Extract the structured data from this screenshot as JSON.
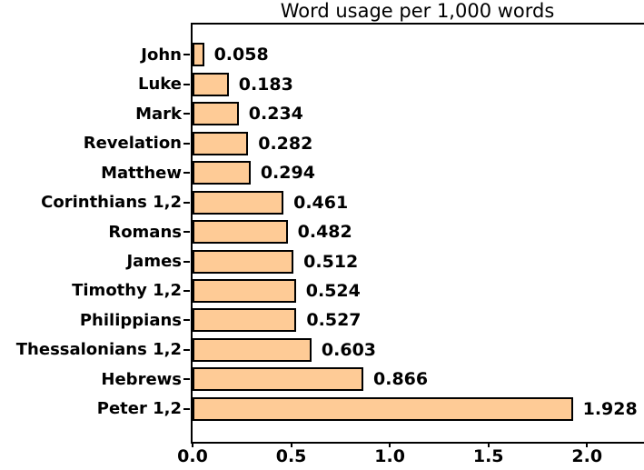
{
  "chart_data": {
    "type": "bar",
    "orientation": "horizontal",
    "title": "Word usage per 1,000 words",
    "xlabel": "",
    "ylabel": "",
    "grid": false,
    "legend": null,
    "categories": [
      "John",
      "Luke",
      "Mark",
      "Revelation",
      "Matthew",
      "Corinthians 1,2",
      "Romans",
      "James",
      "Timothy 1,2",
      "Philippians",
      "Thessalonians 1,2",
      "Hebrews",
      "Peter 1,2"
    ],
    "values": [
      0.058,
      0.183,
      0.234,
      0.282,
      0.294,
      0.461,
      0.482,
      0.512,
      0.524,
      0.527,
      0.603,
      0.866,
      1.928
    ],
    "value_labels": [
      "0.058",
      "0.183",
      "0.234",
      "0.282",
      "0.294",
      "0.461",
      "0.482",
      "0.512",
      "0.524",
      "0.527",
      "0.603",
      "0.866",
      "1.928"
    ],
    "x_ticks": [
      "0.0",
      "0.5",
      "1.0",
      "1.5",
      "2.0"
    ],
    "x_tick_values": [
      0,
      0.5,
      1,
      1.5,
      2
    ],
    "xlim": [
      0,
      2.289
    ],
    "bar_color": "#FECB96",
    "bar_edge_color": "#000000",
    "text_color": "#000000",
    "background_color": "#FFFFFF"
  }
}
